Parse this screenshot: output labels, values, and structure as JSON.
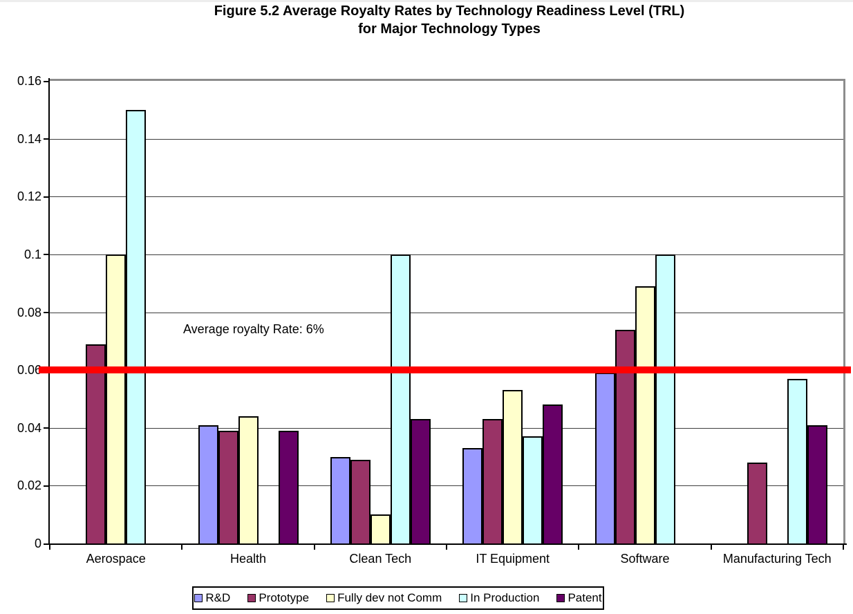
{
  "title": {
    "line1": "Figure 5.2 Average Royalty Rates by Technology Readiness Level (TRL)",
    "line2": "for Major Technology Types"
  },
  "chart_data": {
    "type": "bar",
    "title": "Figure 5.2 Average Royalty Rates by Technology Readiness Level (TRL) for Major Technology Types",
    "categories": [
      "Aerospace",
      "Health",
      "Clean Tech",
      "IT Equipment",
      "Software",
      "Manufacturing Tech"
    ],
    "series": [
      {
        "name": "R&D",
        "color": "#9999FF",
        "values": [
          null,
          0.041,
          0.03,
          0.033,
          0.059,
          null
        ]
      },
      {
        "name": "Prototype",
        "color": "#993366",
        "values": [
          0.069,
          0.039,
          0.029,
          0.043,
          0.074,
          0.028
        ]
      },
      {
        "name": "Fully dev not Comm",
        "color": "#FFFFCC",
        "values": [
          0.1,
          0.044,
          0.01,
          0.053,
          0.089,
          null
        ]
      },
      {
        "name": "In Production",
        "color": "#CCFFFF",
        "values": [
          0.15,
          null,
          0.1,
          0.037,
          0.1,
          0.057
        ]
      },
      {
        "name": "Patent",
        "color": "#660066",
        "values": [
          null,
          0.039,
          0.043,
          0.048,
          null,
          0.041
        ]
      }
    ],
    "ylim": [
      0,
      0.16
    ],
    "ytick_labels": [
      "0",
      "0.02",
      "0.04",
      "0.06",
      "0.08",
      "0.1",
      "0.12",
      "0.14",
      "0.16"
    ],
    "ytick_step": 0.02,
    "grid": true,
    "legend_position": "bottom",
    "reference_line": {
      "value": 0.06,
      "color": "#FF0000",
      "annotation": "Average royalty Rate: 6%"
    }
  }
}
